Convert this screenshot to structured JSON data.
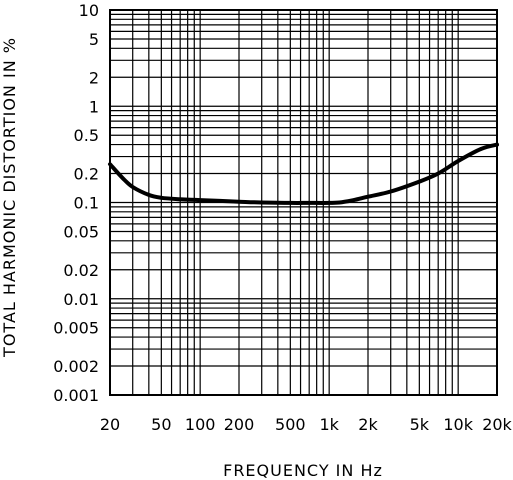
{
  "chart_data": {
    "type": "line",
    "title": "",
    "xlabel": "FREQUENCY IN Hz",
    "ylabel": "TOTAL HARMONIC DISTORTION IN %",
    "x_scale": "log",
    "y_scale": "log",
    "xlim": [
      20,
      20000
    ],
    "ylim": [
      0.001,
      10
    ],
    "grid": true,
    "x_ticks": [
      {
        "value": 20,
        "label": "20"
      },
      {
        "value": 50,
        "label": "50"
      },
      {
        "value": 100,
        "label": "100"
      },
      {
        "value": 200,
        "label": "200"
      },
      {
        "value": 500,
        "label": "500"
      },
      {
        "value": 1000,
        "label": "1k"
      },
      {
        "value": 2000,
        "label": "2k"
      },
      {
        "value": 5000,
        "label": "5k"
      },
      {
        "value": 10000,
        "label": "10k"
      },
      {
        "value": 20000,
        "label": "20k"
      }
    ],
    "y_ticks": [
      {
        "value": 10,
        "label": "10"
      },
      {
        "value": 5,
        "label": "5"
      },
      {
        "value": 2,
        "label": "2"
      },
      {
        "value": 1,
        "label": "1"
      },
      {
        "value": 0.5,
        "label": "0.5"
      },
      {
        "value": 0.2,
        "label": "0.2"
      },
      {
        "value": 0.1,
        "label": "0.1"
      },
      {
        "value": 0.05,
        "label": "0.05"
      },
      {
        "value": 0.02,
        "label": "0.02"
      },
      {
        "value": 0.01,
        "label": "0.01"
      },
      {
        "value": 0.005,
        "label": "0.005"
      },
      {
        "value": 0.002,
        "label": "0.002"
      },
      {
        "value": 0.001,
        "label": "0.001"
      }
    ],
    "series": [
      {
        "x": [
          20,
          25,
          30,
          40,
          50,
          70,
          100,
          200,
          300,
          500,
          700,
          1000,
          1200,
          1500,
          2000,
          3000,
          5000,
          7000,
          10000,
          15000,
          20000
        ],
        "y": [
          0.25,
          0.18,
          0.145,
          0.12,
          0.112,
          0.108,
          0.106,
          0.102,
          0.1,
          0.099,
          0.099,
          0.099,
          0.1,
          0.105,
          0.115,
          0.13,
          0.165,
          0.2,
          0.27,
          0.36,
          0.4
        ]
      }
    ]
  }
}
